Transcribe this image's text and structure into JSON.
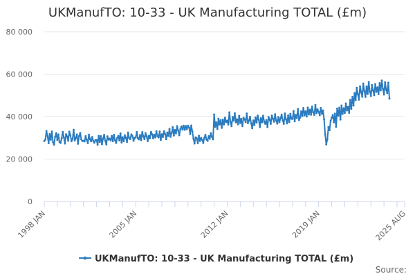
{
  "chart_data": {
    "type": "line",
    "title": "UKManufTO: 10-33 - UK Manufacturing TOTAL (£m)",
    "legend_label": "UKManufTO: 10-33 - UK Manufacturing TOTAL (£m)",
    "source_label": "Source:",
    "series_color": "#2b7bbf",
    "axis_color": "#ccd6eb",
    "grid_color": "#e6e6e6",
    "ylim": [
      0,
      80000
    ],
    "yticks": [
      {
        "value": 0,
        "label": "0"
      },
      {
        "value": 20000,
        "label": "20 000"
      },
      {
        "value": 40000,
        "label": "40 000"
      },
      {
        "value": 60000,
        "label": "60 000"
      },
      {
        "value": 80000,
        "label": "80 000"
      }
    ],
    "x_start": "1998 JAN",
    "x_end": "2025 AUG",
    "xtick_labels": [
      {
        "label": "1998 JAN",
        "year": 1998.0
      },
      {
        "label": "2005 JAN",
        "year": 2005.0
      },
      {
        "label": "2012 JAN",
        "year": 2012.0
      },
      {
        "label": "2019 JAN",
        "year": 2019.0
      },
      {
        "label": "2025 AUG",
        "year": 2025.58
      }
    ],
    "series": [
      {
        "name": "UKManufTO: 10-33 - UK Manufacturing TOTAL (£m)",
        "x_start_year": 1998.0,
        "x_step_years": 0.08333333,
        "values": [
          28500,
          29200,
          33200,
          30800,
          27500,
          31800,
          29100,
          33000,
          28000,
          26800,
          30500,
          32200,
          29000,
          31600,
          28000,
          27600,
          29800,
          32800,
          30200,
          27300,
          31700,
          30600,
          28600,
          32900,
          31200,
          28400,
          29500,
          33800,
          28800,
          29900,
          31600,
          27200,
          30800,
          32300,
          29300,
          28500,
          28600,
          28300,
          30800,
          29100,
          27500,
          31500,
          29400,
          28400,
          30400,
          28600,
          27700,
          28900,
          29000,
          26800,
          30900,
          28000,
          30800,
          27000,
          29600,
          31400,
          28600,
          26900,
          30700,
          29200,
          29600,
          28800,
          30900,
          28400,
          31400,
          28900,
          27600,
          29900,
          30900,
          28800,
          32100,
          27800,
          30300,
          28400,
          31200,
          30000,
          28100,
          32500,
          29900,
          29400,
          31600,
          30800,
          28600,
          30000,
          30200,
          32800,
          29800,
          29300,
          31300,
          28900,
          32700,
          30700,
          29400,
          32200,
          30600,
          28500,
          30900,
          29800,
          32800,
          31700,
          29800,
          31500,
          30200,
          33100,
          30800,
          30200,
          33000,
          29000,
          31700,
          30400,
          33100,
          31800,
          29400,
          32500,
          30900,
          34200,
          30500,
          32300,
          35000,
          31100,
          33700,
          32100,
          35500,
          33400,
          31200,
          34100,
          35400,
          33900,
          35700,
          33800,
          35600,
          34100,
          35700,
          34900,
          31800,
          35800,
          33000,
          29600,
          27300,
          30200,
          29800,
          27500,
          31000,
          28500,
          30000,
          29100,
          27600,
          30000,
          31400,
          29200,
          28600,
          30800,
          29600,
          32200,
          30400,
          29300,
          41000,
          35200,
          37300,
          34200,
          39000,
          36300,
          38300,
          34700,
          38600,
          36300,
          39500,
          37400,
          38100,
          36300,
          42000,
          37400,
          35500,
          39800,
          38100,
          41600,
          37300,
          38700,
          36400,
          40400,
          37000,
          38900,
          35500,
          39400,
          38700,
          37400,
          41500,
          36900,
          38100,
          39900,
          36800,
          34500,
          38200,
          36000,
          39600,
          37200,
          40500,
          38500,
          35100,
          39300,
          37300,
          40400,
          37700,
          36600,
          38400,
          35100,
          39800,
          38600,
          36600,
          40500,
          39000,
          37600,
          41100,
          38200,
          36700,
          39800,
          37400,
          39200,
          40900,
          38200,
          36600,
          41500,
          38700,
          36800,
          40600,
          37500,
          41300,
          39000,
          38900,
          42600,
          37800,
          40800,
          39300,
          43600,
          38400,
          39600,
          42500,
          40300,
          44100,
          40600,
          42500,
          40100,
          44300,
          41000,
          43300,
          40900,
          44700,
          42000,
          40800,
          45500,
          41600,
          43400,
          42200,
          40700,
          44100,
          41300,
          42900,
          38700,
          31500,
          26900,
          29300,
          35100,
          33600,
          38000,
          39400,
          40800,
          37300,
          41400,
          35200,
          43800,
          40500,
          44200,
          38600,
          45200,
          41300,
          43900,
          41700,
          46200,
          42900,
          44600,
          41800,
          47900,
          43700,
          49300,
          45200,
          51100,
          47800,
          53600,
          50600,
          48000,
          54300,
          51600,
          49400,
          55600,
          52100,
          49300,
          54200,
          50700,
          56300,
          51800,
          49700,
          54900,
          52300,
          50100,
          55300,
          51700,
          53800,
          50600,
          55800,
          52400,
          57000,
          53100,
          50400,
          56200,
          52700,
          51100,
          56000,
          48500
        ]
      }
    ]
  }
}
